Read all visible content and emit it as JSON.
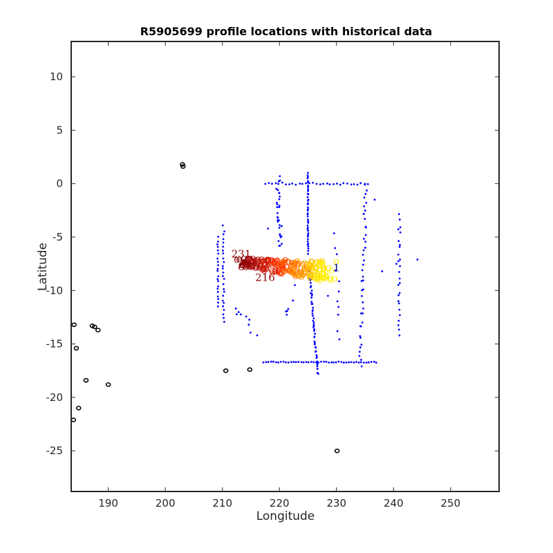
{
  "chart_data": {
    "type": "scatter",
    "title": "R5905699 profile locations with historical data",
    "xlabel": "Longitude",
    "ylabel": "Latitude",
    "xlim": [
      183.5,
      258.5
    ],
    "ylim": [
      -28.8,
      13.3
    ],
    "xticks": [
      190,
      200,
      210,
      220,
      230,
      240,
      250
    ],
    "yticks": [
      10,
      5,
      0,
      -5,
      -10,
      -15,
      -20,
      -25
    ],
    "grid": false,
    "colors": {
      "historical": "#0000ff",
      "coastline": "#000000",
      "profile_recent": "#8b0000",
      "profile_mid": "#ff3300",
      "profile_mid2": "#ff9900",
      "profile_late": "#ffee00"
    },
    "coastline_islands": [
      {
        "x": 203.0,
        "y": 1.8
      },
      {
        "x": 203.1,
        "y": 1.6
      },
      {
        "x": 187.2,
        "y": -13.3
      },
      {
        "x": 187.6,
        "y": -13.4
      },
      {
        "x": 188.2,
        "y": -13.7
      },
      {
        "x": 184.0,
        "y": -13.2
      },
      {
        "x": 184.4,
        "y": -15.4
      },
      {
        "x": 186.1,
        "y": -18.4
      },
      {
        "x": 190.0,
        "y": -18.8
      },
      {
        "x": 184.8,
        "y": -21.0
      },
      {
        "x": 183.9,
        "y": -22.1
      },
      {
        "x": 210.6,
        "y": -17.5
      },
      {
        "x": 214.8,
        "y": -17.4
      },
      {
        "x": 230.1,
        "y": -25.0
      }
    ],
    "profile_labels": [
      {
        "text": "231",
        "x": 213.3,
        "y": -6.9
      },
      {
        "text": "216",
        "x": 217.5,
        "y": -9.1
      },
      {
        "text": "1",
        "x": 230.0,
        "y": -8.2
      }
    ]
  }
}
